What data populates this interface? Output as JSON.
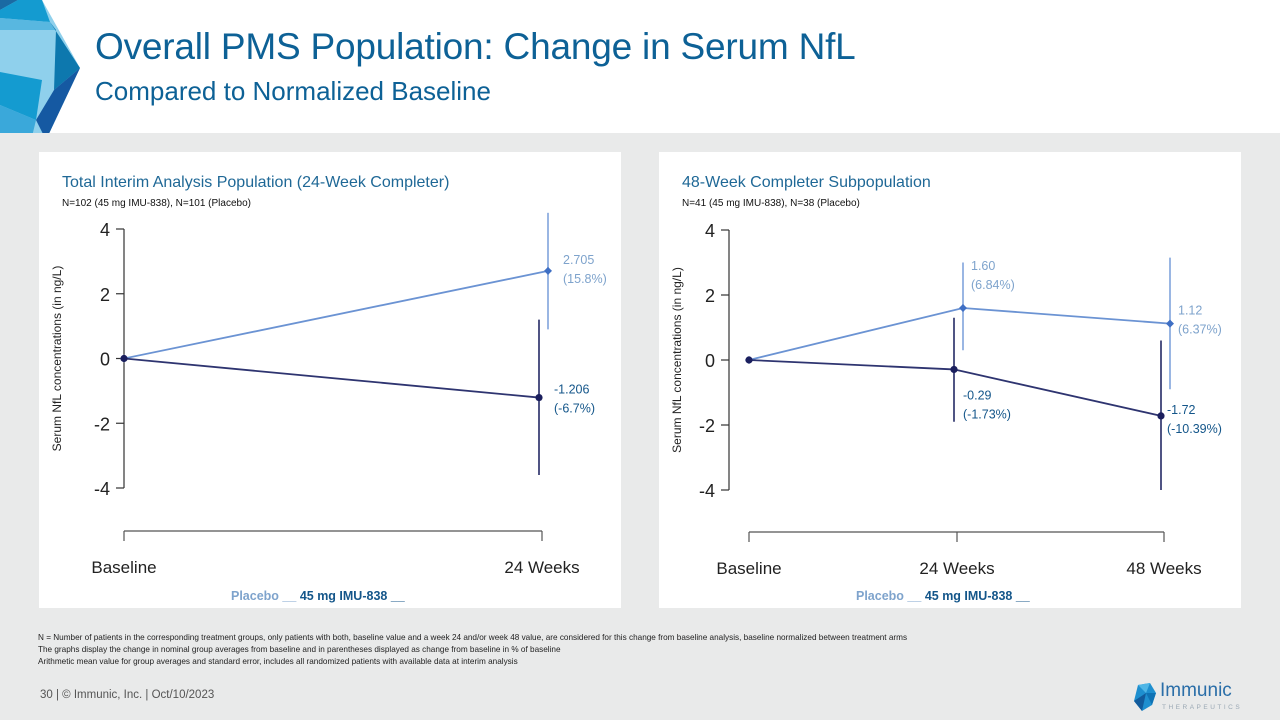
{
  "header": {
    "title": "Overall PMS Population: Change in Serum NfL",
    "subtitle": "Compared to Normalized Baseline"
  },
  "colors": {
    "title": "#0d6196",
    "placebo": "#7ea3cc",
    "placebo_marker": "#3f6fc4",
    "drug": "#1b1f5e",
    "drug_label": "#14568a",
    "band": "#e9eaea"
  },
  "chart_data": [
    {
      "type": "line",
      "title": "Total Interim Analysis Population (24-Week Completer)",
      "subtitle": "N=102 (45 mg IMU-838), N=101 (Placebo)",
      "ylabel": "Serum NfL concentrations (in ng/L)",
      "xlabel": "",
      "categories": [
        "Baseline",
        "24 Weeks"
      ],
      "ylim": [
        -4,
        4
      ],
      "yticks": [
        "4",
        "2",
        "0",
        "-2",
        "-4"
      ],
      "ytick_values": [
        4,
        2,
        0,
        -2,
        -4
      ],
      "grid": false,
      "legend": "bottom",
      "series": [
        {
          "name": "Placebo",
          "values": [
            0,
            2.705
          ],
          "error_low": [
            0,
            0.9
          ],
          "error_high": [
            0,
            4.5
          ],
          "labels": [
            null,
            [
              "2.705",
              "(15.8%)"
            ]
          ]
        },
        {
          "name": "45 mg IMU-838",
          "values": [
            0,
            -1.206
          ],
          "error_low": [
            0,
            -3.6
          ],
          "error_high": [
            0,
            1.2
          ],
          "labels": [
            null,
            [
              "-1.206",
              "(-6.7%)"
            ]
          ]
        }
      ]
    },
    {
      "type": "line",
      "title": "48-Week Completer Subpopulation",
      "subtitle": "N=41 (45 mg IMU-838), N=38 (Placebo)",
      "ylabel": "Serum NfL concentrations (in ng/L)",
      "xlabel": "",
      "categories": [
        "Baseline",
        "24 Weeks",
        "48 Weeks"
      ],
      "ylim": [
        -4,
        4
      ],
      "yticks": [
        "4",
        "2",
        "0",
        "-2",
        "-4"
      ],
      "ytick_values": [
        4,
        2,
        0,
        -2,
        -4
      ],
      "grid": false,
      "legend": "bottom",
      "series": [
        {
          "name": "Placebo",
          "values": [
            0,
            1.6,
            1.12
          ],
          "error_low": [
            0,
            0.3,
            -0.9
          ],
          "error_high": [
            0,
            3.0,
            3.15
          ],
          "labels": [
            null,
            [
              "1.60",
              "(6.84%)"
            ],
            [
              "1.12",
              "(6.37%)"
            ]
          ]
        },
        {
          "name": "45 mg IMU-838",
          "values": [
            0,
            -0.29,
            -1.72
          ],
          "error_low": [
            0,
            -1.9,
            -4.0
          ],
          "error_high": [
            0,
            1.3,
            0.6
          ],
          "labels": [
            null,
            [
              "-0.29",
              "(-1.73%)"
            ],
            [
              "-1.72",
              "(-10.39%)"
            ]
          ]
        }
      ]
    }
  ],
  "legend": {
    "placebo": "Placebo __",
    "drug": "45 mg IMU-838 __"
  },
  "notes": [
    "N = Number of patients in the corresponding treatment groups, only patients with both, baseline value and a week 24 and/or week 48 value, are considered for this change from baseline analysis, baseline normalized between treatment arms",
    "The graphs display the change in nominal group averages from baseline and in parentheses displayed as change from baseline in % of baseline",
    "Arithmetic mean value for group averages and standard error, includes all randomized patients with available data at interim analysis"
  ],
  "footer": {
    "text": "30   |  © Immunic, Inc.   | Oct/10/2023",
    "brand_name": "Immunic",
    "brand_sub": "THERAPEUTICS"
  }
}
